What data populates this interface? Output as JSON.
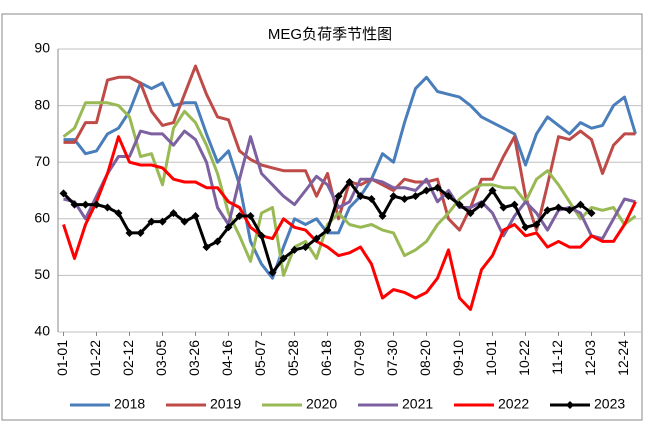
{
  "chart_data": {
    "type": "line",
    "title": "MEG负荷季节性图",
    "categories": [
      "01-01",
      null,
      null,
      "01-22",
      null,
      null,
      "02-12",
      null,
      null,
      "03-05",
      null,
      null,
      "03-26",
      null,
      null,
      "04-16",
      null,
      null,
      "05-07",
      null,
      null,
      "05-28",
      null,
      null,
      "06-18",
      null,
      null,
      "07-09",
      null,
      null,
      "07-30",
      null,
      null,
      "08-20",
      null,
      null,
      "09-10",
      null,
      null,
      "10-01",
      null,
      null,
      "10-22",
      null,
      null,
      "11-12",
      null,
      null,
      "12-03",
      null,
      null,
      "12-24",
      null
    ],
    "ylim": [
      40,
      90
    ],
    "yticks": [
      40,
      50,
      60,
      70,
      80,
      90
    ],
    "grid": true,
    "legend": "bottom",
    "series": [
      {
        "name": "2018",
        "color": "#4a7ebb",
        "values": [
          74,
          74,
          71.5,
          72,
          75,
          76,
          79,
          84,
          83,
          84,
          80,
          80.5,
          80.5,
          75,
          70,
          72,
          66,
          56,
          52,
          49.5,
          55,
          60,
          59,
          60,
          57.5,
          57.5,
          62,
          64,
          67,
          71.5,
          70,
          77,
          83,
          85,
          82.5,
          82,
          81.5,
          80,
          78,
          77,
          76,
          75,
          69.5,
          75,
          78,
          76.5,
          75,
          77,
          76,
          76.5,
          80,
          81.5,
          75
        ]
      },
      {
        "name": "2019",
        "color": "#be4b48",
        "values": [
          73.5,
          73.5,
          77,
          77,
          84.5,
          85,
          85,
          84,
          79,
          76.5,
          77,
          82,
          87,
          82,
          78,
          77.5,
          72,
          70.5,
          69.5,
          69,
          68.5,
          68.5,
          68.5,
          64,
          68,
          60,
          66.5,
          66,
          67,
          66,
          65,
          67,
          66.5,
          66.5,
          67,
          60,
          58,
          62,
          67,
          67,
          71,
          74.5,
          64,
          58,
          66,
          74.5,
          74,
          75.5,
          74,
          68,
          73,
          75,
          75
        ]
      },
      {
        "name": "2020",
        "color": "#98b954",
        "values": [
          74.5,
          76,
          80.5,
          80.5,
          80.5,
          80,
          78,
          71,
          71.5,
          66,
          76,
          79,
          77,
          73,
          68,
          61,
          57,
          52.5,
          61,
          62,
          50,
          55,
          56,
          53,
          59,
          61,
          59,
          58.5,
          59,
          58,
          57.5,
          53.5,
          54.5,
          56,
          59,
          61,
          63.5,
          65,
          66,
          66,
          65.5,
          65.5,
          63,
          67,
          68.5,
          66,
          63,
          60,
          62,
          61.5,
          62,
          59,
          60.5
        ]
      },
      {
        "name": "2021",
        "color": "#7d60a0",
        "values": [
          63.5,
          63,
          60,
          64,
          68,
          71,
          71,
          75.5,
          75,
          75,
          73,
          75.5,
          74,
          70,
          62,
          59,
          67,
          74.5,
          68,
          66,
          64,
          62.5,
          65,
          67.5,
          66,
          62,
          63,
          67,
          67,
          66.5,
          65.5,
          65.5,
          65,
          67,
          63,
          65,
          62,
          62,
          63,
          61,
          57,
          60.5,
          63,
          61,
          58,
          61.5,
          62,
          61,
          57,
          56.5,
          60,
          63.5,
          63
        ]
      },
      {
        "name": "2022",
        "color": "#ff0000",
        "values": [
          59,
          53,
          59,
          63,
          68,
          74.5,
          70,
          69.5,
          69.5,
          69,
          67,
          66.5,
          66.5,
          65.5,
          65.5,
          63,
          62,
          58.5,
          57,
          56.5,
          60,
          58.5,
          58,
          56,
          55,
          53.5,
          54,
          55,
          52,
          46,
          47.5,
          47,
          46,
          47,
          49.5,
          54.5,
          46,
          44,
          51,
          53.5,
          58,
          59,
          57,
          57.5,
          55,
          56,
          55,
          55,
          57,
          56,
          56,
          59,
          63
        ]
      },
      {
        "name": "2023",
        "color": "#000000",
        "marker": "diamond",
        "values": [
          64.5,
          62.5,
          62.5,
          62.5,
          62,
          61,
          57.5,
          57.5,
          59.5,
          59.5,
          61,
          59.5,
          60.5,
          55,
          56,
          58.5,
          60.5,
          60.5,
          57,
          50.5,
          53,
          54.5,
          55,
          56.5,
          58,
          64,
          66.5,
          64,
          63.5,
          60.5,
          64,
          63.5,
          64,
          65,
          65.5,
          64,
          62.5,
          61,
          62.5,
          65,
          62,
          62.5,
          58.5,
          59,
          61.5,
          62,
          61.5,
          62.5,
          61,
          null,
          null,
          null,
          null
        ]
      }
    ]
  }
}
